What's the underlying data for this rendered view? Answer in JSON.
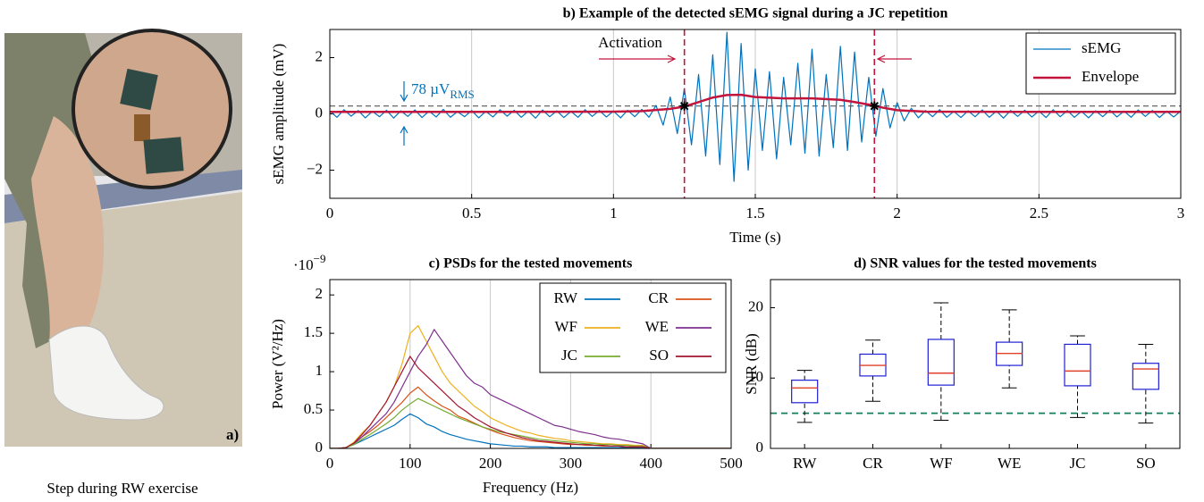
{
  "photo": {
    "label": "a)",
    "caption": "Step during RW exercise"
  },
  "chart_data": [
    {
      "type": "line",
      "title": "b) Example of the detected sEMG signal during a JC repetition",
      "xlabel": "Time (s)",
      "ylabel": "sEMG amplitude (mV)",
      "xlim": [
        0,
        3
      ],
      "ylim": [
        -3,
        3
      ],
      "xticks": [
        0,
        0.5,
        1,
        1.5,
        2,
        2.5,
        3
      ],
      "yticks": [
        {
          "value": -2,
          "label": "−2"
        },
        0,
        2
      ],
      "grid": "x",
      "legend": "upper right",
      "threshold": 0.28,
      "threshold_color": "#555555",
      "activation_lines": [
        1.25,
        1.92
      ],
      "activation_color": "#c3143c",
      "markers": [
        {
          "x": 1.25,
          "y": 0.28
        },
        {
          "x": 1.92,
          "y": 0.28
        }
      ],
      "annotations": {
        "activation": "Activation",
        "noise": {
          "text": "78 µV",
          "sub": "RMS"
        }
      },
      "series": [
        {
          "name": "sEMG",
          "color": "#0072bd",
          "width": 1.2,
          "x": [
            0,
            0.025,
            0.05,
            0.075,
            0.1,
            0.125,
            0.15,
            0.175,
            0.2,
            0.225,
            0.25,
            0.275,
            0.3,
            0.325,
            0.35,
            0.375,
            0.4,
            0.425,
            0.45,
            0.475,
            0.5,
            0.525,
            0.55,
            0.575,
            0.6,
            0.625,
            0.65,
            0.675,
            0.7,
            0.725,
            0.75,
            0.775,
            0.8,
            0.825,
            0.85,
            0.875,
            0.9,
            0.925,
            0.95,
            0.975,
            1,
            1.025,
            1.05,
            1.075,
            1.1,
            1.125,
            1.15,
            1.175,
            1.2,
            1.225,
            1.25,
            1.275,
            1.3,
            1.325,
            1.35,
            1.375,
            1.4,
            1.425,
            1.45,
            1.475,
            1.5,
            1.525,
            1.55,
            1.575,
            1.6,
            1.625,
            1.65,
            1.675,
            1.7,
            1.725,
            1.75,
            1.775,
            1.8,
            1.825,
            1.85,
            1.875,
            1.9,
            1.925,
            1.95,
            1.975,
            2,
            2.025,
            2.05,
            2.075,
            2.1,
            2.125,
            2.15,
            2.175,
            2.2,
            2.225,
            2.25,
            2.275,
            2.3,
            2.325,
            2.35,
            2.375,
            2.4,
            2.425,
            2.45,
            2.475,
            2.5,
            2.525,
            2.55,
            2.575,
            2.6,
            2.625,
            2.65,
            2.675,
            2.7,
            2.725,
            2.75,
            2.775,
            2.8,
            2.825,
            2.85,
            2.875,
            2.9,
            2.925,
            2.95,
            2.975,
            3
          ],
          "values": [
            0.1,
            -0.12,
            0.15,
            -0.08,
            0.12,
            -0.14,
            0.09,
            -0.1,
            0.13,
            -0.15,
            0.11,
            -0.09,
            0.14,
            -0.13,
            0.1,
            -0.11,
            0.16,
            -0.12,
            0.08,
            -0.1,
            0.12,
            -0.14,
            0.09,
            -0.11,
            0.15,
            -0.08,
            0.13,
            -0.12,
            0.1,
            -0.15,
            0.14,
            -0.1,
            0.11,
            -0.13,
            0.09,
            -0.12,
            0.15,
            -0.09,
            0.12,
            -0.11,
            0.1,
            -0.14,
            0.13,
            -0.1,
            0.16,
            -0.12,
            0.3,
            -0.4,
            0.6,
            -0.7,
            0.9,
            -1.1,
            1.4,
            -1.5,
            2.1,
            -1.8,
            2.9,
            -2.4,
            2.5,
            -2,
            1.6,
            -1.3,
            1.5,
            -1.6,
            1.3,
            -1.1,
            1.8,
            -1.4,
            2.3,
            -1.5,
            1.4,
            -1.2,
            2.4,
            -1.3,
            2.2,
            -1,
            1.3,
            -0.8,
            0.9,
            -0.5,
            0.4,
            -0.25,
            0.2,
            -0.14,
            0.12,
            -0.1,
            0.15,
            -0.12,
            0.09,
            -0.13,
            0.11,
            -0.1,
            0.14,
            -0.12,
            0.1,
            -0.15,
            0.12,
            -0.09,
            0.13,
            -0.11,
            0.1,
            -0.13,
            0.15,
            -0.1,
            0.12,
            -0.12,
            0.09,
            -0.14,
            0.11,
            -0.1,
            0.13,
            -0.11,
            0.1,
            -0.12,
            0.14,
            -0.09,
            0.12,
            -0.13,
            0.1,
            -0.11,
            0.1
          ]
        },
        {
          "name": "Envelope",
          "color": "#c3143c",
          "width": 2.5,
          "x": [
            0,
            0.5,
            1,
            1.1,
            1.2,
            1.25,
            1.3,
            1.35,
            1.4,
            1.45,
            1.5,
            1.6,
            1.7,
            1.8,
            1.85,
            1.9,
            1.95,
            2,
            2.1,
            2.5,
            3
          ],
          "values": [
            0.07,
            0.07,
            0.08,
            0.1,
            0.18,
            0.26,
            0.42,
            0.58,
            0.67,
            0.68,
            0.6,
            0.55,
            0.55,
            0.5,
            0.42,
            0.33,
            0.22,
            0.13,
            0.08,
            0.07,
            0.07
          ]
        }
      ]
    },
    {
      "type": "line",
      "title": "c) PSDs for the tested movements",
      "xlabel": "Frequency (Hz)",
      "ylabel": "Power (V²/Hz)",
      "multiplier": {
        "base": "·10",
        "exponent": "−9"
      },
      "xlim": [
        0,
        500
      ],
      "ylim": [
        0,
        2.2
      ],
      "xticks": [
        0,
        100,
        200,
        300,
        400,
        500
      ],
      "yticks": [
        0,
        0.5,
        1,
        1.5,
        2
      ],
      "grid": "x",
      "legend": "upper right",
      "legend_columns": 2,
      "x": [
        0,
        10,
        20,
        30,
        40,
        50,
        60,
        70,
        80,
        90,
        100,
        110,
        120,
        130,
        140,
        150,
        160,
        170,
        180,
        190,
        200,
        210,
        220,
        230,
        240,
        250,
        260,
        270,
        280,
        290,
        300,
        310,
        320,
        330,
        340,
        350,
        360,
        370,
        380,
        390,
        400,
        500
      ],
      "series": [
        {
          "name": "RW",
          "color": "#0072bd",
          "width": 1.2,
          "values": [
            0,
            0,
            0.01,
            0.05,
            0.1,
            0.15,
            0.2,
            0.25,
            0.3,
            0.38,
            0.45,
            0.4,
            0.32,
            0.28,
            0.22,
            0.18,
            0.15,
            0.12,
            0.1,
            0.08,
            0.06,
            0.05,
            0.04,
            0.03,
            0.03,
            0.02,
            0.02,
            0.02,
            0.01,
            0.01,
            0.01,
            0.01,
            0.01,
            0.01,
            0.01,
            0.01,
            0.01,
            0.01,
            0.01,
            0.005,
            0,
            0
          ]
        },
        {
          "name": "CR",
          "color": "#d95319",
          "width": 1.2,
          "values": [
            0,
            0,
            0.01,
            0.06,
            0.15,
            0.22,
            0.3,
            0.4,
            0.5,
            0.6,
            0.72,
            0.8,
            0.7,
            0.62,
            0.55,
            0.5,
            0.42,
            0.38,
            0.33,
            0.28,
            0.24,
            0.2,
            0.17,
            0.14,
            0.12,
            0.1,
            0.09,
            0.08,
            0.07,
            0.06,
            0.05,
            0.05,
            0.04,
            0.04,
            0.03,
            0.03,
            0.03,
            0.02,
            0.02,
            0.02,
            0,
            0
          ]
        },
        {
          "name": "WF",
          "color": "#edb120",
          "width": 1.2,
          "values": [
            0,
            0,
            0.01,
            0.08,
            0.2,
            0.3,
            0.45,
            0.6,
            0.8,
            1.1,
            1.5,
            1.6,
            1.4,
            1.2,
            1,
            0.85,
            0.75,
            0.65,
            0.55,
            0.48,
            0.4,
            0.35,
            0.3,
            0.26,
            0.22,
            0.2,
            0.17,
            0.15,
            0.13,
            0.12,
            0.1,
            0.09,
            0.08,
            0.07,
            0.06,
            0.06,
            0.05,
            0.05,
            0.04,
            0.04,
            0,
            0
          ]
        },
        {
          "name": "WE",
          "color": "#7e2f8e",
          "width": 1.2,
          "values": [
            0,
            0,
            0.01,
            0.06,
            0.15,
            0.25,
            0.35,
            0.45,
            0.6,
            0.8,
            1,
            1.2,
            1.35,
            1.55,
            1.4,
            1.25,
            1.1,
            0.95,
            0.85,
            0.8,
            0.7,
            0.65,
            0.6,
            0.55,
            0.5,
            0.45,
            0.4,
            0.35,
            0.3,
            0.28,
            0.25,
            0.22,
            0.2,
            0.18,
            0.15,
            0.13,
            0.12,
            0.1,
            0.08,
            0.06,
            0,
            0
          ]
        },
        {
          "name": "JC",
          "color": "#77ac30",
          "width": 1.2,
          "values": [
            0,
            0,
            0.01,
            0.05,
            0.12,
            0.18,
            0.25,
            0.32,
            0.4,
            0.5,
            0.58,
            0.65,
            0.6,
            0.55,
            0.5,
            0.45,
            0.4,
            0.36,
            0.32,
            0.28,
            0.25,
            0.22,
            0.2,
            0.18,
            0.16,
            0.14,
            0.12,
            0.11,
            0.1,
            0.09,
            0.08,
            0.07,
            0.06,
            0.06,
            0.05,
            0.05,
            0.04,
            0.04,
            0.03,
            0.03,
            0,
            0
          ]
        },
        {
          "name": "SO",
          "color": "#a2142f",
          "width": 1.2,
          "values": [
            0,
            0,
            0.01,
            0.07,
            0.18,
            0.3,
            0.45,
            0.6,
            0.8,
            1,
            1.2,
            1.05,
            0.95,
            0.85,
            0.75,
            0.65,
            0.55,
            0.48,
            0.4,
            0.34,
            0.28,
            0.24,
            0.2,
            0.17,
            0.14,
            0.12,
            0.1,
            0.09,
            0.08,
            0.07,
            0.06,
            0.05,
            0.05,
            0.04,
            0.04,
            0.03,
            0.03,
            0.02,
            0.02,
            0.02,
            0,
            0
          ]
        }
      ]
    },
    {
      "type": "box",
      "title": "d) SNR values for the tested movements",
      "ylabel": "SNR (dB)",
      "categories": [
        "RW",
        "CR",
        "WF",
        "WE",
        "JC",
        "SO"
      ],
      "ylim": [
        0,
        24
      ],
      "yticks": [
        0,
        10,
        20
      ],
      "reference": 5,
      "reference_color": "#1a7a5a",
      "box_color": "#1f1fd6",
      "median_color": "#e0402a",
      "whisker_color": "#000000",
      "boxes": [
        {
          "min": 3.7,
          "q1": 6.5,
          "median": 8.6,
          "q3": 9.7,
          "max": 11.1
        },
        {
          "min": 6.7,
          "q1": 10.3,
          "median": 11.8,
          "q3": 13.4,
          "max": 15.4
        },
        {
          "min": 4,
          "q1": 9,
          "median": 10.7,
          "q3": 15.5,
          "max": 20.7
        },
        {
          "min": 8.6,
          "q1": 11.8,
          "median": 13.5,
          "q3": 15.1,
          "max": 19.7
        },
        {
          "min": 4.4,
          "q1": 8.9,
          "median": 11,
          "q3": 14.8,
          "max": 16
        },
        {
          "min": 3.6,
          "q1": 8.4,
          "median": 11.3,
          "q3": 12.1,
          "max": 14.8
        }
      ]
    }
  ]
}
